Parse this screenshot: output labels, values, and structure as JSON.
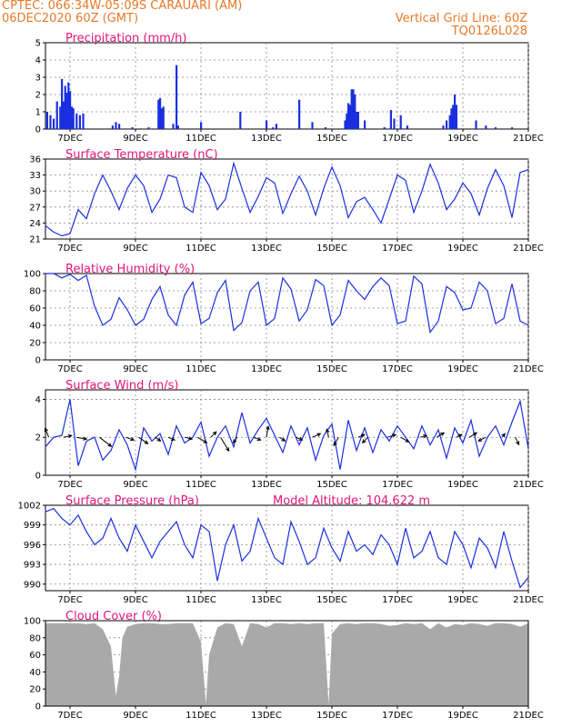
{
  "header": {
    "line1_left": "CPTEC:   066:34W-05:09S  CARAUARI (AM)",
    "line2_left": "06DEC2020 60Z (GMT)",
    "line2_right": "Vertical Grid Line: 60Z",
    "line3_right": "TQ0126L028"
  },
  "colors": {
    "series": "#1a2fe0",
    "cloud": "#a9a9a9",
    "title": "#e0157c",
    "header": "#e8792a"
  },
  "x_axis": {
    "ticks": [
      "7DEC",
      "9DEC",
      "11DEC",
      "13DEC",
      "15DEC",
      "17DEC",
      "19DEC",
      "21DEC"
    ],
    "tick_days": [
      7,
      9,
      11,
      13,
      15,
      17,
      19,
      21
    ],
    "range_days": [
      6.25,
      21.0
    ]
  },
  "chart_data": [
    {
      "id": "precip",
      "type": "bar",
      "title": "Precipitation (mm/h)",
      "ylim": [
        0,
        5
      ],
      "yticks": [
        0,
        1,
        2,
        3,
        4,
        5
      ],
      "x": [
        6.3,
        6.4,
        6.5,
        6.6,
        6.7,
        6.75,
        6.8,
        6.85,
        6.9,
        6.95,
        7.0,
        7.05,
        7.1,
        7.2,
        7.3,
        7.4,
        8.3,
        8.4,
        8.5,
        8.9,
        9.4,
        9.7,
        9.75,
        9.8,
        9.85,
        10.15,
        10.25,
        10.3,
        11.0,
        12.2,
        13.0,
        13.2,
        13.3,
        14.0,
        14.4,
        14.8,
        15.4,
        15.45,
        15.5,
        15.55,
        15.6,
        15.65,
        15.7,
        15.75,
        15.8,
        16.0,
        16.6,
        16.8,
        16.9,
        17.1,
        17.3,
        18.4,
        18.5,
        18.6,
        18.65,
        18.7,
        18.75,
        18.8,
        19.4,
        19.7,
        20.0,
        20.5
      ],
      "values": [
        1.0,
        0.8,
        0.6,
        1.6,
        1.3,
        2.9,
        1.6,
        2.5,
        2.1,
        2.7,
        2.2,
        1.3,
        1.2,
        0.9,
        0.8,
        0.9,
        0.2,
        0.4,
        0.3,
        0.1,
        0.1,
        1.7,
        1.8,
        1.2,
        1.3,
        0.3,
        3.7,
        0.2,
        0.4,
        1.0,
        0.5,
        0.1,
        0.3,
        1.7,
        0.4,
        0.1,
        0.5,
        0.9,
        1.5,
        1.4,
        2.3,
        2.3,
        2.0,
        1.0,
        1.0,
        0.5,
        0.1,
        1.1,
        0.6,
        0.8,
        0.2,
        0.2,
        0.5,
        0.8,
        1.2,
        1.4,
        2.0,
        1.4,
        0.5,
        0.2,
        0.1,
        0.1
      ]
    },
    {
      "id": "temp",
      "type": "line",
      "title": "Surface Temperature (nC)",
      "ylim": [
        21,
        36
      ],
      "yticks": [
        21,
        24,
        27,
        30,
        33,
        36
      ],
      "x": [
        6.25,
        6.5,
        6.75,
        7.0,
        7.25,
        7.5,
        7.75,
        8.0,
        8.25,
        8.5,
        8.75,
        9.0,
        9.25,
        9.5,
        9.75,
        10.0,
        10.25,
        10.5,
        10.75,
        11.0,
        11.25,
        11.5,
        11.75,
        12.0,
        12.25,
        12.5,
        12.75,
        13.0,
        13.25,
        13.5,
        13.75,
        14.0,
        14.25,
        14.5,
        14.75,
        15.0,
        15.25,
        15.5,
        15.75,
        16.0,
        16.25,
        16.5,
        16.75,
        17.0,
        17.25,
        17.5,
        17.75,
        18.0,
        18.25,
        18.5,
        18.75,
        19.0,
        19.25,
        19.5,
        19.75,
        20.0,
        20.25,
        20.5,
        20.75,
        21.0
      ],
      "values": [
        23.5,
        22.3,
        21.6,
        22.0,
        26.5,
        24.8,
        29.5,
        33.0,
        30.0,
        26.5,
        30.5,
        33.0,
        31.0,
        26.0,
        28.5,
        33.0,
        32.5,
        27.0,
        26.0,
        33.5,
        31.0,
        26.5,
        28.5,
        35.2,
        30.5,
        26.0,
        29.0,
        32.5,
        31.5,
        25.8,
        29.5,
        32.8,
        30.0,
        25.5,
        30.5,
        34.5,
        31.0,
        25.0,
        28.0,
        28.8,
        26.5,
        24.0,
        28.5,
        33.0,
        32.0,
        26.0,
        30.0,
        35.0,
        31.5,
        26.5,
        28.5,
        31.5,
        29.5,
        25.5,
        30.5,
        34.0,
        31.0,
        25.0,
        33.5,
        34.0
      ]
    },
    {
      "id": "rh",
      "type": "line",
      "title": "Relative Humidity (%)",
      "ylim": [
        0,
        100
      ],
      "yticks": [
        0,
        20,
        40,
        60,
        80,
        100
      ],
      "x": [
        6.25,
        6.5,
        6.75,
        7.0,
        7.25,
        7.5,
        7.75,
        8.0,
        8.25,
        8.5,
        8.75,
        9.0,
        9.25,
        9.5,
        9.75,
        10.0,
        10.25,
        10.5,
        10.75,
        11.0,
        11.25,
        11.5,
        11.75,
        12.0,
        12.25,
        12.5,
        12.75,
        13.0,
        13.25,
        13.5,
        13.75,
        14.0,
        14.25,
        14.5,
        14.75,
        15.0,
        15.25,
        15.5,
        15.75,
        16.0,
        16.25,
        16.5,
        16.75,
        17.0,
        17.25,
        17.5,
        17.75,
        18.0,
        18.25,
        18.5,
        18.75,
        19.0,
        19.25,
        19.5,
        19.75,
        20.0,
        20.25,
        20.5,
        20.75,
        21.0
      ],
      "values": [
        100,
        100,
        95,
        99,
        92,
        98,
        62,
        40,
        47,
        72,
        58,
        40,
        47,
        70,
        85,
        52,
        40,
        75,
        90,
        42,
        48,
        78,
        92,
        34,
        43,
        80,
        90,
        40,
        48,
        95,
        82,
        45,
        58,
        93,
        86,
        40,
        52,
        92,
        80,
        70,
        85,
        95,
        86,
        42,
        45,
        97,
        88,
        32,
        45,
        85,
        78,
        58,
        60,
        90,
        80,
        42,
        48,
        88,
        45,
        40
      ]
    },
    {
      "id": "wind",
      "type": "line",
      "title": "Surface Wind (m/s)",
      "ylim": [
        0,
        4.5
      ],
      "yticks": [
        0,
        2,
        4
      ],
      "x": [
        6.25,
        6.5,
        6.75,
        7.0,
        7.25,
        7.5,
        7.75,
        8.0,
        8.25,
        8.5,
        8.75,
        9.0,
        9.25,
        9.5,
        9.75,
        10.0,
        10.25,
        10.5,
        10.75,
        11.0,
        11.25,
        11.5,
        11.75,
        12.0,
        12.25,
        12.5,
        12.75,
        13.0,
        13.25,
        13.5,
        13.75,
        14.0,
        14.25,
        14.5,
        14.75,
        15.0,
        15.25,
        15.5,
        15.75,
        16.0,
        16.25,
        16.5,
        16.75,
        17.0,
        17.25,
        17.5,
        17.75,
        18.0,
        18.25,
        18.5,
        18.75,
        19.0,
        19.25,
        19.5,
        19.75,
        20.0,
        20.25,
        20.5,
        20.75,
        21.0
      ],
      "values": [
        1.5,
        2.0,
        2.1,
        4.0,
        0.5,
        1.8,
        2.0,
        0.8,
        1.3,
        2.4,
        1.6,
        0.3,
        2.5,
        1.8,
        2.2,
        1.1,
        2.6,
        1.7,
        2.0,
        2.8,
        1.0,
        2.0,
        2.6,
        1.5,
        3.3,
        1.7,
        2.4,
        3.0,
        2.1,
        1.2,
        2.6,
        1.6,
        2.5,
        0.8,
        2.1,
        2.7,
        0.3,
        2.9,
        1.3,
        2.5,
        1.2,
        2.4,
        1.8,
        2.6,
        2.0,
        1.4,
        2.6,
        1.6,
        2.4,
        0.9,
        2.5,
        1.7,
        2.9,
        1.0,
        2.0,
        2.6,
        1.6,
        2.8,
        3.9,
        1.4
      ],
      "vectors": {
        "x": [
          6.35,
          6.8,
          7.2,
          7.9,
          8.7,
          9.1,
          9.6,
          10.0,
          10.5,
          10.9,
          11.3,
          11.6,
          12.1,
          12.6,
          13.0,
          13.4,
          13.9,
          14.4,
          14.9,
          15.2,
          15.8,
          16.1,
          16.7,
          17.1,
          17.7,
          18.2,
          18.8,
          19.2,
          19.7,
          20.2,
          20.6
        ],
        "u": [
          -0.4,
          0.9,
          1.1,
          1.3,
          0.9,
          1.0,
          0.6,
          0.7,
          0.8,
          1.0,
          0.6,
          0.9,
          -0.4,
          0.8,
          0.2,
          0.6,
          0.7,
          0.9,
          -0.2,
          -0.5,
          0.7,
          -0.6,
          0.9,
          0.9,
          0.7,
          0.8,
          0.6,
          0.8,
          -0.8,
          0.3,
          0.4
        ],
        "v": [
          1.0,
          0.2,
          -0.2,
          -1.0,
          -0.3,
          -0.7,
          -0.4,
          -0.3,
          -0.2,
          -0.6,
          0.6,
          -1.5,
          -0.6,
          -0.3,
          1.2,
          -0.4,
          -0.3,
          0.4,
          0.9,
          -0.9,
          0.3,
          -0.6,
          0.3,
          -0.5,
          0.2,
          0.5,
          0.3,
          0.5,
          -0.4,
          0.4,
          -0.8
        ]
      }
    },
    {
      "id": "pres",
      "type": "line",
      "title": "Surface Pressure (hPa)",
      "note": "Model Altitude: 104.622 m",
      "ylim": [
        989,
        1002
      ],
      "yticks": [
        990,
        993,
        996,
        999,
        1002
      ],
      "x": [
        6.25,
        6.5,
        6.75,
        7.0,
        7.25,
        7.5,
        7.75,
        8.0,
        8.25,
        8.5,
        8.75,
        9.0,
        9.25,
        9.5,
        9.75,
        10.0,
        10.25,
        10.5,
        10.75,
        11.0,
        11.25,
        11.5,
        11.75,
        12.0,
        12.25,
        12.5,
        12.75,
        13.0,
        13.25,
        13.5,
        13.75,
        14.0,
        14.25,
        14.5,
        14.75,
        15.0,
        15.25,
        15.5,
        15.75,
        16.0,
        16.25,
        16.5,
        16.75,
        17.0,
        17.25,
        17.5,
        17.75,
        18.0,
        18.25,
        18.5,
        18.75,
        19.0,
        19.25,
        19.5,
        19.75,
        20.0,
        20.25,
        20.5,
        20.75,
        21.0
      ],
      "values": [
        1001,
        1001.5,
        1000,
        999,
        1000.5,
        998,
        996,
        997,
        1000,
        997,
        995,
        999,
        996.5,
        994,
        996.5,
        998,
        999.5,
        996,
        994,
        999,
        998,
        990.5,
        996,
        999,
        993.5,
        995,
        1000,
        997,
        994,
        993,
        999.5,
        996.5,
        993,
        994,
        998.5,
        995.5,
        993.5,
        998,
        995,
        996,
        994.5,
        997.5,
        996,
        993,
        998.5,
        994,
        995,
        998,
        994,
        993,
        998,
        996,
        992.5,
        997,
        995.5,
        992.5,
        998,
        993.5,
        989.5,
        991
      ]
    },
    {
      "id": "cloud",
      "type": "area",
      "title": "Cloud Cover (%)",
      "ylim": [
        0,
        100
      ],
      "yticks": [
        0,
        20,
        40,
        60,
        80,
        100
      ],
      "x": [
        6.25,
        6.5,
        6.75,
        7.0,
        7.25,
        7.5,
        7.75,
        8.0,
        8.25,
        8.4,
        8.5,
        8.6,
        8.75,
        9.0,
        9.25,
        9.5,
        9.75,
        10.0,
        10.25,
        10.5,
        10.75,
        11.0,
        11.15,
        11.25,
        11.5,
        11.75,
        12.0,
        12.25,
        12.5,
        12.75,
        13.0,
        13.25,
        13.5,
        13.75,
        14.0,
        14.25,
        14.5,
        14.75,
        14.9,
        15.0,
        15.25,
        15.5,
        15.75,
        16.0,
        16.25,
        16.5,
        16.75,
        17.0,
        17.25,
        17.5,
        17.75,
        18.0,
        18.25,
        18.5,
        18.75,
        19.0,
        19.25,
        19.5,
        19.75,
        20.0,
        20.25,
        20.5,
        20.75,
        21.0
      ],
      "values": [
        97,
        97,
        97,
        97,
        97,
        96,
        97,
        90,
        70,
        12,
        35,
        80,
        93,
        96,
        97,
        97,
        96,
        96,
        97,
        97,
        97,
        75,
        3,
        60,
        92,
        97,
        96,
        70,
        97,
        96,
        92,
        97,
        97,
        96,
        97,
        96,
        97,
        97,
        2,
        85,
        96,
        97,
        96,
        97,
        97,
        96,
        94,
        95,
        97,
        96,
        97,
        90,
        97,
        92,
        96,
        95,
        97,
        96,
        94,
        97,
        97,
        96,
        93,
        97
      ]
    }
  ]
}
